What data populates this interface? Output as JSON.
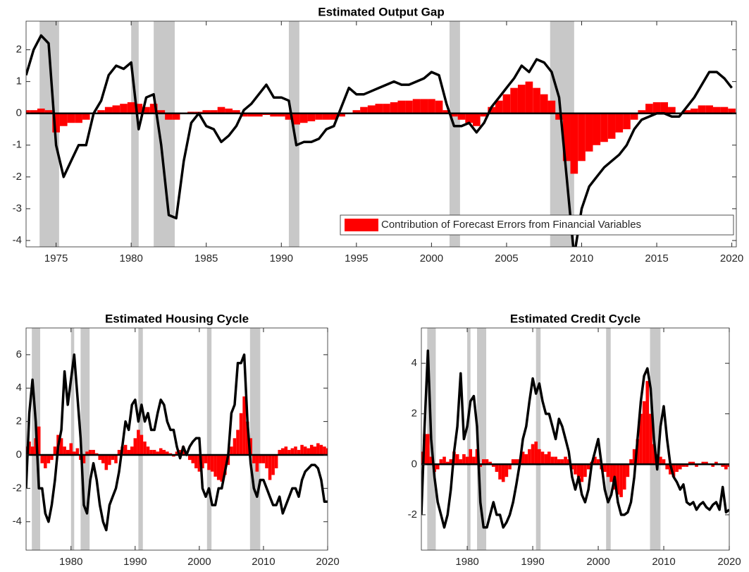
{
  "chart_data": [
    {
      "type": "combo",
      "title": "Estimated Output Gap",
      "x": [
        1973,
        1973.5,
        1974,
        1974.5,
        1975,
        1975.5,
        1976,
        1976.5,
        1977,
        1977.5,
        1978,
        1978.5,
        1979,
        1979.5,
        1980,
        1980.5,
        1981,
        1981.5,
        1982,
        1982.5,
        1983,
        1983.5,
        1984,
        1984.5,
        1985,
        1985.5,
        1986,
        1986.5,
        1987,
        1987.5,
        1988,
        1988.5,
        1989,
        1989.5,
        1990,
        1990.5,
        1991,
        1991.5,
        1992,
        1992.5,
        1993,
        1993.5,
        1994,
        1994.5,
        1995,
        1995.5,
        1996,
        1996.5,
        1997,
        1997.5,
        1998,
        1998.5,
        1999,
        1999.5,
        2000,
        2000.5,
        2001,
        2001.5,
        2002,
        2002.5,
        2003,
        2003.5,
        2004,
        2004.5,
        2005,
        2005.5,
        2006,
        2006.5,
        2007,
        2007.5,
        2008,
        2008.5,
        2009,
        2009.5,
        2010,
        2010.5,
        2011,
        2011.5,
        2012,
        2012.5,
        2013,
        2013.5,
        2014,
        2014.5,
        2015,
        2015.5,
        2016,
        2016.5,
        2017,
        2017.5,
        2018,
        2018.5,
        2019,
        2019.5,
        2020
      ],
      "series": [
        {
          "name": "Contribution of Forecast Errors from Financial Variables",
          "color": "#ff0000",
          "values": [
            0.1,
            0.1,
            0.15,
            0.1,
            -0.6,
            -0.4,
            -0.3,
            -0.3,
            -0.2,
            0.0,
            0.1,
            0.2,
            0.25,
            0.3,
            0.35,
            0.3,
            0.2,
            0.3,
            0.1,
            -0.2,
            -0.2,
            0.0,
            0.05,
            0.05,
            0.1,
            0.1,
            0.2,
            0.15,
            0.1,
            -0.1,
            -0.1,
            -0.1,
            -0.05,
            -0.1,
            -0.1,
            -0.2,
            -0.35,
            -0.3,
            -0.25,
            -0.2,
            -0.2,
            -0.2,
            -0.1,
            0.0,
            0.1,
            0.2,
            0.25,
            0.3,
            0.3,
            0.35,
            0.4,
            0.4,
            0.45,
            0.45,
            0.45,
            0.4,
            0.1,
            -0.1,
            -0.2,
            -0.3,
            -0.4,
            -0.1,
            0.2,
            0.4,
            0.6,
            0.8,
            0.9,
            1.0,
            0.8,
            0.6,
            0.4,
            -0.2,
            -1.5,
            -1.9,
            -1.5,
            -1.2,
            -1.0,
            -0.9,
            -0.8,
            -0.6,
            -0.5,
            -0.2,
            0.1,
            0.3,
            0.35,
            0.35,
            0.2,
            0.0,
            0.1,
            0.15,
            0.25,
            0.25,
            0.2,
            0.2,
            0.15
          ]
        }
      ],
      "line": {
        "color": "#000000",
        "values": [
          1.2,
          2.0,
          2.45,
          2.2,
          -1.0,
          -2.0,
          -1.5,
          -1.0,
          -1.0,
          0.0,
          0.4,
          1.2,
          1.5,
          1.4,
          1.6,
          -0.5,
          0.5,
          0.6,
          -1.0,
          -3.2,
          -3.3,
          -1.5,
          -0.3,
          0.0,
          -0.4,
          -0.5,
          -0.9,
          -0.7,
          -0.4,
          0.1,
          0.3,
          0.6,
          0.9,
          0.5,
          0.5,
          0.4,
          -1.0,
          -0.9,
          -0.9,
          -0.8,
          -0.5,
          -0.4,
          0.2,
          0.8,
          0.6,
          0.6,
          0.7,
          0.8,
          0.9,
          1.0,
          0.9,
          0.9,
          1.0,
          1.1,
          1.3,
          1.2,
          0.3,
          -0.4,
          -0.4,
          -0.3,
          -0.6,
          -0.3,
          0.2,
          0.5,
          0.8,
          1.1,
          1.5,
          1.3,
          1.7,
          1.6,
          1.3,
          0.5,
          -2.0,
          -4.5,
          -3.0,
          -2.3,
          -2.0,
          -1.7,
          -1.5,
          -1.3,
          -1.0,
          -0.5,
          -0.2,
          -0.1,
          0.0,
          0.0,
          -0.1,
          -0.1,
          0.2,
          0.5,
          0.9,
          1.3,
          1.3,
          1.1,
          0.8
        ]
      },
      "recessions": [
        [
          1973.9,
          1975.2
        ],
        [
          1980.0,
          1980.5
        ],
        [
          1981.5,
          1982.9
        ],
        [
          1990.5,
          1991.2
        ],
        [
          2001.2,
          2001.9
        ],
        [
          2007.9,
          2009.5
        ]
      ],
      "recession_color": "#c8c8c8",
      "xlim": [
        1973,
        2020.3
      ],
      "xticks": [
        1975,
        1980,
        1985,
        1990,
        1995,
        2000,
        2005,
        2010,
        2015,
        2020
      ],
      "ylim": [
        -4.2,
        2.9
      ],
      "yticks": [
        -4,
        -3,
        -2,
        -1,
        0,
        1,
        2
      ],
      "legend": "lower right"
    },
    {
      "type": "combo",
      "title": "Estimated Housing Cycle",
      "x": [
        1973,
        1973.5,
        1974,
        1974.5,
        1975,
        1975.5,
        1976,
        1976.5,
        1977,
        1977.5,
        1978,
        1978.5,
        1979,
        1979.5,
        1980,
        1980.5,
        1981,
        1981.5,
        1982,
        1982.5,
        1983,
        1983.5,
        1984,
        1984.5,
        1985,
        1985.5,
        1986,
        1986.5,
        1987,
        1987.5,
        1988,
        1988.5,
        1989,
        1989.5,
        1990,
        1990.5,
        1991,
        1991.5,
        1992,
        1992.5,
        1993,
        1993.5,
        1994,
        1994.5,
        1995,
        1995.5,
        1996,
        1996.5,
        1997,
        1997.5,
        1998,
        1998.5,
        1999,
        1999.5,
        2000,
        2000.5,
        2001,
        2001.5,
        2002,
        2002.5,
        2003,
        2003.5,
        2004,
        2004.5,
        2005,
        2005.5,
        2006,
        2006.5,
        2007,
        2007.5,
        2008,
        2008.5,
        2009,
        2009.5,
        2010,
        2010.5,
        2011,
        2011.5,
        2012,
        2012.5,
        2013,
        2013.5,
        2014,
        2014.5,
        2015,
        2015.5,
        2016,
        2016.5,
        2017,
        2017.5,
        2018,
        2018.5,
        2019,
        2019.5,
        2020
      ],
      "series": [
        {
          "color": "#ff0000",
          "values": [
            0.5,
            0.8,
            0.5,
            1.0,
            1.7,
            -0.5,
            -0.8,
            -0.5,
            -0.3,
            0.5,
            1.2,
            1.0,
            0.5,
            0.3,
            0.7,
            0.2,
            0.4,
            -0.3,
            -0.5,
            0.2,
            0.3,
            0.3,
            0.1,
            -0.3,
            -0.5,
            -0.9,
            -0.6,
            -0.3,
            -0.5,
            0.3,
            0.5,
            0.6,
            0.3,
            0.5,
            1.0,
            1.5,
            1.2,
            0.8,
            0.5,
            0.3,
            0.3,
            0.2,
            0.4,
            0.3,
            0.2,
            0.1,
            -0.1,
            0.2,
            0.3,
            0.5,
            0.2,
            -0.3,
            -0.5,
            -0.8,
            -1.0,
            -0.8,
            -0.5,
            -0.9,
            -1.0,
            -1.3,
            -1.5,
            -1.6,
            -1.2,
            -0.6,
            0.5,
            1.0,
            1.5,
            2.5,
            3.5,
            2.0,
            1.0,
            -0.5,
            -1.0,
            -0.5,
            -0.5,
            -0.8,
            -1.5,
            -1.2,
            -0.8,
            0.3,
            0.4,
            0.5,
            0.3,
            0.4,
            0.5,
            0.3,
            0.6,
            0.5,
            0.4,
            0.6,
            0.5,
            0.7,
            0.6,
            0.5,
            0.4
          ]
        }
      ],
      "line": {
        "color": "#000000",
        "values": [
          -2.0,
          2.5,
          4.5,
          2.0,
          -2.0,
          -2.0,
          -3.5,
          -4.0,
          -3.0,
          -1.5,
          0.5,
          1.5,
          5.0,
          3.0,
          4.5,
          6.0,
          3.5,
          1.0,
          -3.0,
          -3.5,
          -1.5,
          -0.5,
          -1.5,
          -3.0,
          -4.0,
          -4.5,
          -3.0,
          -2.5,
          -2.0,
          -1.0,
          0.5,
          2.0,
          1.5,
          3.0,
          3.3,
          2.0,
          3.0,
          2.0,
          2.5,
          1.5,
          1.5,
          2.5,
          3.3,
          3.0,
          2.0,
          1.5,
          1.5,
          0.5,
          -0.2,
          0.5,
          0.0,
          0.5,
          0.8,
          1.0,
          1.0,
          -2.0,
          -2.5,
          -2.0,
          -3.0,
          -3.0,
          -2.0,
          -2.0,
          -1.0,
          0.0,
          2.5,
          3.0,
          5.5,
          5.5,
          6.0,
          2.0,
          -0.5,
          -2.0,
          -2.5,
          -1.5,
          -1.5,
          -2.0,
          -2.5,
          -3.0,
          -3.0,
          -2.5,
          -3.5,
          -3.0,
          -2.5,
          -2.0,
          -2.0,
          -2.5,
          -1.5,
          -1.0,
          -0.8,
          -0.6,
          -0.6,
          -0.8,
          -1.5,
          -2.8,
          -2.8
        ]
      },
      "recessions": [
        [
          1973.9,
          1975.2
        ],
        [
          1980.0,
          1980.5
        ],
        [
          1981.5,
          1982.9
        ],
        [
          1990.5,
          1991.2
        ],
        [
          2001.2,
          2001.9
        ],
        [
          2007.9,
          2009.5
        ]
      ],
      "recession_color": "#c8c8c8",
      "xlim": [
        1973,
        2020
      ],
      "xticks": [
        1980,
        1990,
        2000,
        2010,
        2020
      ],
      "ylim": [
        -5.7,
        7.6
      ],
      "yticks": [
        -4,
        -2,
        0,
        2,
        4,
        6
      ]
    },
    {
      "type": "combo",
      "title": "Estimated Credit Cycle",
      "x": [
        1973,
        1973.5,
        1974,
        1974.5,
        1975,
        1975.5,
        1976,
        1976.5,
        1977,
        1977.5,
        1978,
        1978.5,
        1979,
        1979.5,
        1980,
        1980.5,
        1981,
        1981.5,
        1982,
        1982.5,
        1983,
        1983.5,
        1984,
        1984.5,
        1985,
        1985.5,
        1986,
        1986.5,
        1987,
        1987.5,
        1988,
        1988.5,
        1989,
        1989.5,
        1990,
        1990.5,
        1991,
        1991.5,
        1992,
        1992.5,
        1993,
        1993.5,
        1994,
        1994.5,
        1995,
        1995.5,
        1996,
        1996.5,
        1997,
        1997.5,
        1998,
        1998.5,
        1999,
        1999.5,
        2000,
        2000.5,
        2001,
        2001.5,
        2002,
        2002.5,
        2003,
        2003.5,
        2004,
        2004.5,
        2005,
        2005.5,
        2006,
        2006.5,
        2007,
        2007.5,
        2008,
        2008.5,
        2009,
        2009.5,
        2010,
        2010.5,
        2011,
        2011.5,
        2012,
        2012.5,
        2013,
        2013.5,
        2014,
        2014.5,
        2015,
        2015.5,
        2016,
        2016.5,
        2017,
        2017.5,
        2018,
        2018.5,
        2019,
        2019.5,
        2020
      ],
      "series": [
        {
          "color": "#ff0000",
          "values": [
            0.5,
            1.2,
            1.2,
            0.3,
            -0.3,
            -0.2,
            0.2,
            0.3,
            0.1,
            0.2,
            0.5,
            0.4,
            0.2,
            0.4,
            0.3,
            0.6,
            0.3,
            0.6,
            -0.1,
            0.2,
            0.2,
            0.1,
            -0.1,
            -0.3,
            -0.6,
            -0.7,
            -0.5,
            -0.2,
            0.2,
            0.2,
            0.2,
            0.5,
            0.4,
            0.6,
            0.8,
            0.9,
            0.6,
            0.5,
            0.4,
            0.5,
            0.3,
            0.3,
            0.2,
            0.2,
            0.3,
            0.2,
            -0.2,
            -0.4,
            -0.5,
            -0.7,
            -0.5,
            -0.2,
            0.1,
            0.3,
            0.2,
            -0.2,
            -0.3,
            -0.5,
            -0.7,
            -1.0,
            -1.2,
            -1.3,
            -1.0,
            -0.5,
            0.2,
            0.6,
            1.0,
            2.0,
            2.5,
            3.3,
            2.0,
            0.8,
            0.4,
            0.3,
            0.2,
            -0.2,
            -0.4,
            -0.5,
            -0.3,
            -0.2,
            -0.1,
            -0.1,
            0.1,
            0.1,
            -0.1,
            0.0,
            0.1,
            0.1,
            0.0,
            -0.1,
            0.1,
            0.0,
            -0.1,
            -0.2,
            -0.1
          ]
        }
      ],
      "line": {
        "color": "#000000",
        "values": [
          -2.0,
          1.5,
          4.5,
          1.0,
          -0.5,
          -1.5,
          -2.0,
          -2.5,
          -2.0,
          -1.0,
          0.5,
          1.5,
          3.6,
          1.0,
          1.5,
          2.5,
          2.7,
          1.5,
          -1.5,
          -2.5,
          -2.5,
          -2.0,
          -1.5,
          -2.0,
          -2.0,
          -2.5,
          -2.3,
          -2.0,
          -1.5,
          -0.8,
          0.0,
          1.0,
          1.5,
          2.5,
          3.4,
          2.8,
          3.2,
          2.5,
          2.0,
          2.0,
          1.5,
          1.0,
          1.8,
          1.5,
          1.0,
          0.5,
          -0.5,
          -1.0,
          -0.5,
          -1.2,
          -1.5,
          -1.0,
          0.0,
          0.5,
          1.0,
          0.0,
          -1.0,
          -1.5,
          -1.2,
          -0.5,
          -1.5,
          -2.0,
          -2.0,
          -1.9,
          -1.5,
          -0.5,
          1.0,
          2.5,
          3.5,
          3.8,
          3.0,
          1.0,
          -0.2,
          1.5,
          2.3,
          1.0,
          0.0,
          -0.5,
          -0.7,
          -1.0,
          -0.8,
          -1.5,
          -1.6,
          -1.5,
          -1.8,
          -1.6,
          -1.5,
          -1.7,
          -1.8,
          -1.6,
          -1.5,
          -1.8,
          -0.9,
          -1.9,
          -1.8
        ]
      },
      "recessions": [
        [
          1973.9,
          1975.2
        ],
        [
          1980.0,
          1980.5
        ],
        [
          1981.5,
          1982.9
        ],
        [
          1990.5,
          1991.2
        ],
        [
          2001.2,
          2001.9
        ],
        [
          2007.9,
          2009.5
        ]
      ],
      "recession_color": "#c8c8c8",
      "xlim": [
        1973,
        2020
      ],
      "xticks": [
        1980,
        1990,
        2000,
        2010,
        2020
      ],
      "ylim": [
        -3.4,
        5.4
      ],
      "yticks": [
        -2,
        0,
        2,
        4
      ]
    }
  ]
}
